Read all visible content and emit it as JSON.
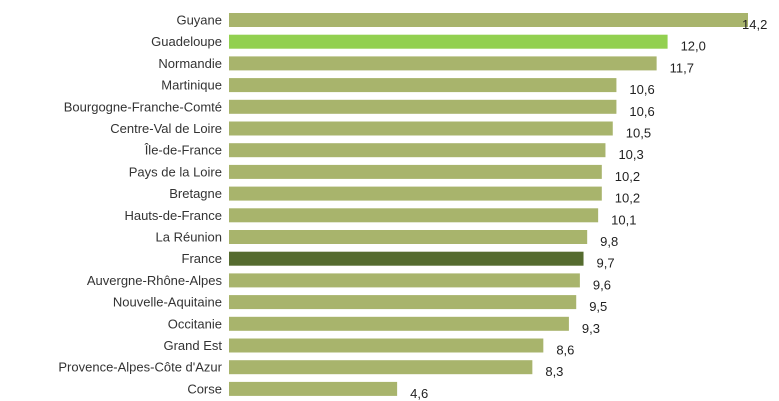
{
  "chart_data": {
    "type": "bar",
    "orientation": "horizontal",
    "categories": [
      "Guyane",
      "Guadeloupe",
      "Normandie",
      "Martinique",
      "Bourgogne-Franche-Comté",
      "Centre-Val de Loire",
      "Île-de-France",
      "Pays de la Loire",
      "Bretagne",
      "Hauts-de-France",
      "La Réunion",
      "France",
      "Auvergne-Rhône-Alpes",
      "Nouvelle-Aquitaine",
      "Occitanie",
      "Grand Est",
      "Provence-Alpes-Côte d'Azur",
      "Corse"
    ],
    "values": [
      14.2,
      12.0,
      11.7,
      10.6,
      10.6,
      10.5,
      10.3,
      10.2,
      10.2,
      10.1,
      9.8,
      9.7,
      9.6,
      9.5,
      9.3,
      8.6,
      8.3,
      4.6
    ],
    "value_labels": [
      "14,2",
      "12,0",
      "11,7",
      "10,6",
      "10,6",
      "10,5",
      "10,3",
      "10,2",
      "10,2",
      "10,1",
      "9,8",
      "9,7",
      "9,6",
      "9,5",
      "9,3",
      "8,6",
      "8,3",
      "4,6"
    ],
    "bar_colors": [
      "#a8b46c",
      "#92d050",
      "#a8b46c",
      "#a8b46c",
      "#a8b46c",
      "#a8b46c",
      "#a8b46c",
      "#a8b46c",
      "#a8b46c",
      "#a8b46c",
      "#a8b46c",
      "#556b2f",
      "#a8b46c",
      "#a8b46c",
      "#a8b46c",
      "#a8b46c",
      "#a8b46c",
      "#a8b46c"
    ],
    "xlim": [
      0,
      14.2
    ],
    "grid": false,
    "legend": "none"
  }
}
